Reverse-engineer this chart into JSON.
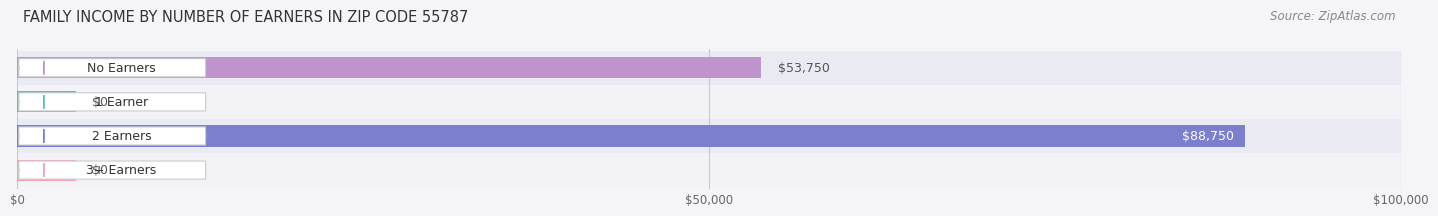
{
  "title": "FAMILY INCOME BY NUMBER OF EARNERS IN ZIP CODE 55787",
  "source": "Source: ZipAtlas.com",
  "categories": [
    "No Earners",
    "1 Earner",
    "2 Earners",
    "3+ Earners"
  ],
  "values": [
    53750,
    0,
    88750,
    0
  ],
  "bar_colors": [
    "#bf93cc",
    "#5abfb7",
    "#7b7fce",
    "#f2a0b5"
  ],
  "xlim": [
    0,
    100000
  ],
  "xticks": [
    0,
    50000,
    100000
  ],
  "xticklabels": [
    "$0",
    "$50,000",
    "$100,000"
  ],
  "value_labels": [
    "$53,750",
    "$0",
    "$88,750",
    "$0"
  ],
  "bar_height": 0.62,
  "background_color": "#f5f5f8",
  "row_bg_even": "#eaeaf2",
  "row_bg_odd": "#f2f2f7",
  "title_fontsize": 10.5,
  "source_fontsize": 8.5,
  "label_fontsize": 9,
  "value_fontsize": 9,
  "zero_bar_width": 4200
}
